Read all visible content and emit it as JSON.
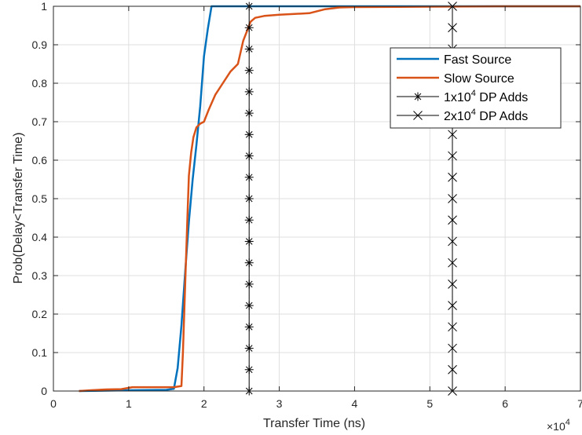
{
  "chart_data": {
    "type": "line",
    "title": "",
    "xlabel": "Transfer Time (ns)",
    "ylabel": "Prob(Delay<Transfer Time)",
    "x_exponent_base": "×10",
    "x_exponent_power": "4",
    "x_scale_factor": 10000,
    "xlim": [
      0,
      70000
    ],
    "ylim": [
      0,
      1
    ],
    "xticks": [
      0,
      10000,
      20000,
      30000,
      40000,
      50000,
      60000,
      70000
    ],
    "xtick_labels": [
      "0",
      "1",
      "2",
      "3",
      "4",
      "5",
      "6",
      "7"
    ],
    "yticks": [
      0,
      0.1,
      0.2,
      0.3,
      0.4,
      0.5,
      0.6,
      0.7,
      0.8,
      0.9,
      1
    ],
    "ytick_labels": [
      "0",
      "0.1",
      "0.2",
      "0.3",
      "0.4",
      "0.5",
      "0.6",
      "0.7",
      "0.8",
      "0.9",
      "1"
    ],
    "grid": true,
    "legend_position": "top-right",
    "series": [
      {
        "name": "Fast Source",
        "color": "#0072BD",
        "marker": "none",
        "x": [
          3400,
          10000,
          15000,
          16000,
          16500,
          17000,
          17500,
          18000,
          18500,
          19000,
          19500,
          20000,
          20500,
          21000,
          22000,
          70000
        ],
        "y": [
          0.0,
          0.002,
          0.003,
          0.006,
          0.06,
          0.17,
          0.31,
          0.44,
          0.55,
          0.64,
          0.74,
          0.87,
          0.94,
          1.0,
          1.0,
          1.0
        ]
      },
      {
        "name": "Slow Source",
        "color": "#D95319",
        "marker": "none",
        "x": [
          3400,
          5000,
          7000,
          9000,
          10500,
          12000,
          14000,
          16000,
          17000,
          17200,
          17500,
          17800,
          18000,
          18300,
          18600,
          19000,
          19500,
          20000,
          20600,
          21500,
          22500,
          23500,
          24500,
          25200,
          25800,
          26200,
          26800,
          28000,
          30000,
          34000,
          36000,
          38000,
          40000,
          50000,
          60000,
          70000
        ],
        "y": [
          0.0,
          0.002,
          0.004,
          0.005,
          0.01,
          0.01,
          0.01,
          0.01,
          0.013,
          0.1,
          0.28,
          0.45,
          0.56,
          0.62,
          0.66,
          0.685,
          0.695,
          0.7,
          0.73,
          0.77,
          0.8,
          0.83,
          0.85,
          0.91,
          0.94,
          0.96,
          0.97,
          0.975,
          0.978,
          0.982,
          0.992,
          0.997,
          0.998,
          0.999,
          1.0,
          1.0
        ]
      },
      {
        "name": "1x10^4 DP Adds",
        "legend_base": "1x10",
        "legend_sup": "4",
        "legend_suffix": " DP Adds",
        "color": "#000000",
        "marker": "asterisk",
        "x": [
          26000,
          26000
        ],
        "y": [
          0,
          1
        ],
        "marker_y": [
          0,
          0.0556,
          0.1111,
          0.1667,
          0.2222,
          0.2778,
          0.3333,
          0.3889,
          0.4444,
          0.5,
          0.5556,
          0.6111,
          0.6667,
          0.7222,
          0.7778,
          0.8333,
          0.8889,
          0.9444,
          1
        ]
      },
      {
        "name": "2x10^4 DP Adds",
        "legend_base": "2x10",
        "legend_sup": "4",
        "legend_suffix": " DP Adds",
        "color": "#000000",
        "marker": "x",
        "x": [
          53000,
          53000
        ],
        "y": [
          0,
          1
        ],
        "marker_y": [
          0,
          0.0556,
          0.1111,
          0.1667,
          0.2222,
          0.2778,
          0.3333,
          0.3889,
          0.4444,
          0.5,
          0.5556,
          0.6111,
          0.6667,
          0.7222,
          0.7778,
          0.8333,
          0.8889,
          0.9444,
          1
        ]
      }
    ]
  }
}
